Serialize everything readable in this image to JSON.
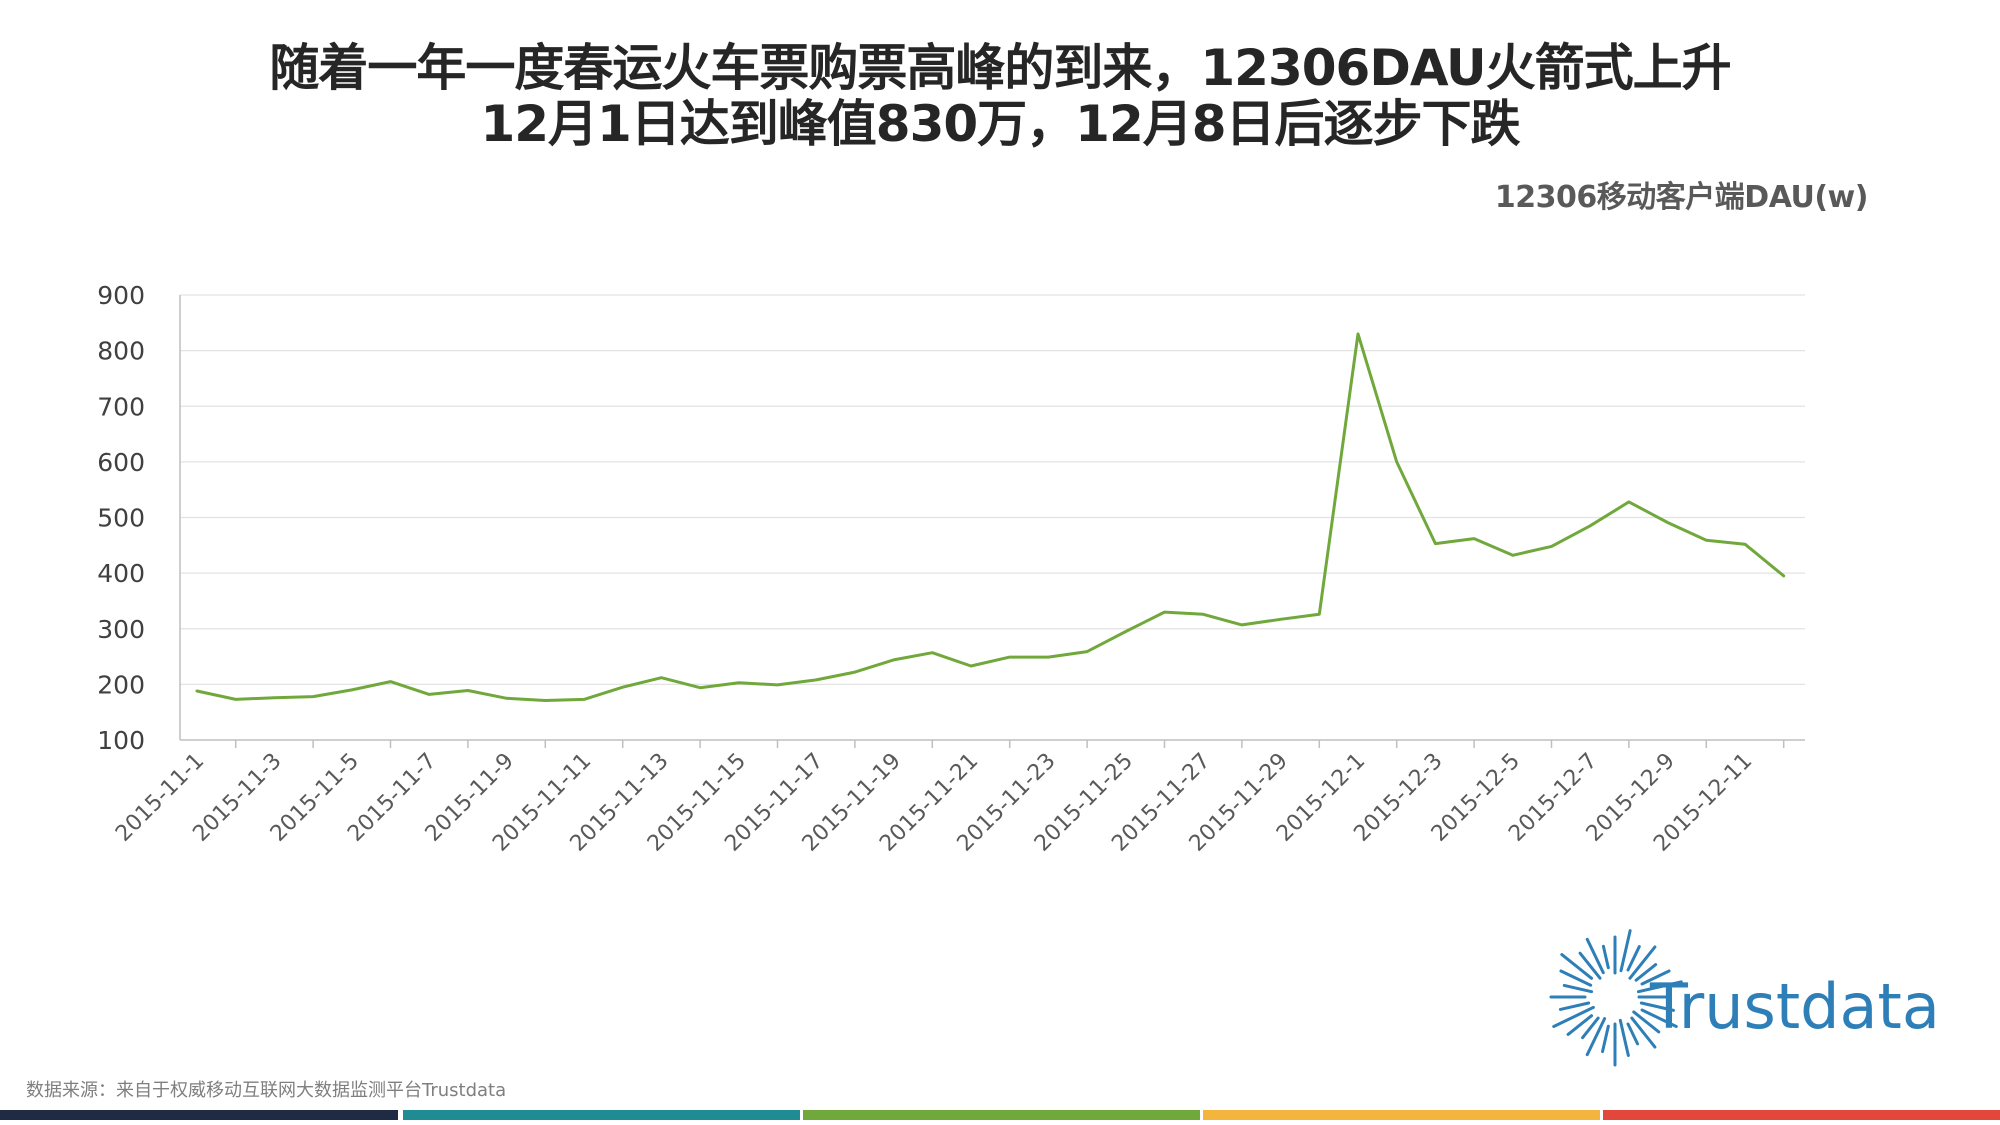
{
  "title": {
    "line1": "随着一年一度春运火车票购票高峰的到来，12306DAU火箭式上升",
    "line2": "12月1日达到峰值830万，12月8日后逐步下跌"
  },
  "chart_data": {
    "type": "line",
    "title": "12306移动客户端DAU(w)",
    "xlabel": "",
    "ylabel": "",
    "ylim": [
      100,
      900
    ],
    "yticks": [
      100,
      200,
      300,
      400,
      500,
      600,
      700,
      800,
      900
    ],
    "grid": true,
    "legend": "none",
    "line_color": "#70a83b",
    "x": [
      "2015-11-1",
      "2015-11-2",
      "2015-11-3",
      "2015-11-4",
      "2015-11-5",
      "2015-11-6",
      "2015-11-7",
      "2015-11-8",
      "2015-11-9",
      "2015-11-10",
      "2015-11-11",
      "2015-11-12",
      "2015-11-13",
      "2015-11-14",
      "2015-11-15",
      "2015-11-16",
      "2015-11-17",
      "2015-11-18",
      "2015-11-19",
      "2015-11-20",
      "2015-11-21",
      "2015-11-22",
      "2015-11-23",
      "2015-11-24",
      "2015-11-25",
      "2015-11-26",
      "2015-11-27",
      "2015-11-28",
      "2015-11-29",
      "2015-11-30",
      "2015-12-1",
      "2015-12-2",
      "2015-12-3",
      "2015-12-4",
      "2015-12-5",
      "2015-12-6",
      "2015-12-7",
      "2015-12-8",
      "2015-12-9",
      "2015-12-10",
      "2015-12-11",
      "2015-12-12"
    ],
    "x_tick_labels": [
      "2015-11-1",
      "2015-11-3",
      "2015-11-5",
      "2015-11-7",
      "2015-11-9",
      "2015-11-11",
      "2015-11-13",
      "2015-11-15",
      "2015-11-17",
      "2015-11-19",
      "2015-11-21",
      "2015-11-23",
      "2015-11-25",
      "2015-11-27",
      "2015-11-29",
      "2015-12-1",
      "2015-12-3",
      "2015-12-5",
      "2015-12-7",
      "2015-12-9",
      "2015-12-11"
    ],
    "series": [
      {
        "values": [
          188,
          173,
          176,
          178,
          190,
          205,
          182,
          189,
          175,
          171,
          173,
          195,
          212,
          194,
          203,
          199,
          208,
          222,
          244,
          257,
          233,
          249,
          249,
          259,
          295,
          330,
          326,
          307,
          317,
          326,
          830,
          600,
          453,
          462,
          432,
          448,
          485,
          528,
          491,
          459,
          452,
          395
        ]
      }
    ]
  },
  "source": "数据来源：来自于权威移动互联网大数据监测平台Trustdata",
  "logo": {
    "text": "Trustdata",
    "color": "#2e7fb8"
  },
  "footer_bars": [
    "#1f2a44",
    "#1f8c93",
    "#70a83b",
    "#f3b53d",
    "#e2473b"
  ]
}
